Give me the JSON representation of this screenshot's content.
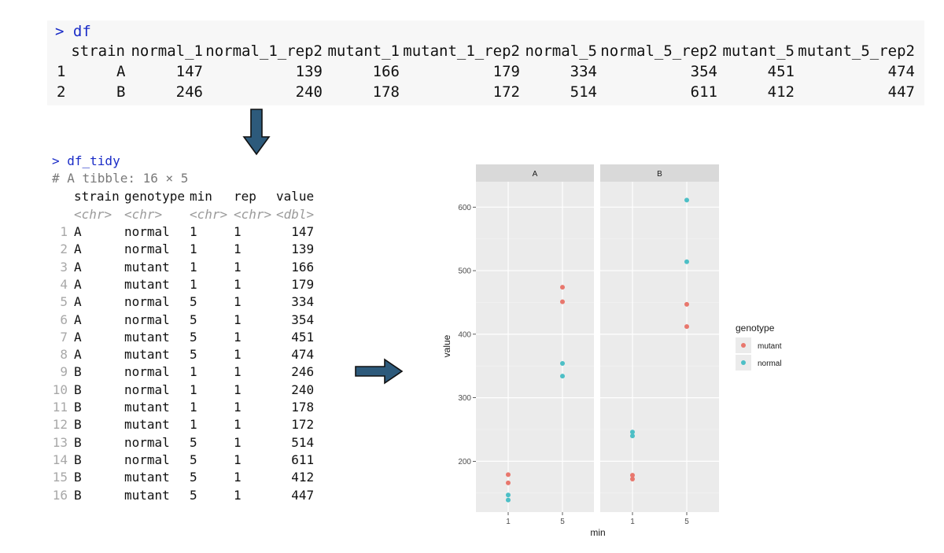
{
  "df": {
    "prompt": "> df",
    "columns": [
      "strain",
      "normal_1",
      "normal_1_rep2",
      "mutant_1",
      "mutant_1_rep2",
      "normal_5",
      "normal_5_rep2",
      "mutant_5",
      "mutant_5_rep2"
    ],
    "rows": [
      [
        "1",
        "A",
        "147",
        "139",
        "166",
        "179",
        "334",
        "354",
        "451",
        "474"
      ],
      [
        "2",
        "B",
        "246",
        "240",
        "178",
        "172",
        "514",
        "611",
        "412",
        "447"
      ]
    ]
  },
  "tidy": {
    "prompt": "> df_tidy",
    "comment": "# A tibble: 16 × 5",
    "columns": [
      "strain",
      "genotype",
      "min",
      "rep",
      "value"
    ],
    "types": [
      "<chr>",
      "<chr>",
      "<chr>",
      "<chr>",
      "<dbl>"
    ],
    "rows": [
      [
        "1",
        "A",
        "normal",
        "1",
        "1",
        "147"
      ],
      [
        "2",
        "A",
        "normal",
        "1",
        "1",
        "139"
      ],
      [
        "3",
        "A",
        "mutant",
        "1",
        "1",
        "166"
      ],
      [
        "4",
        "A",
        "mutant",
        "1",
        "1",
        "179"
      ],
      [
        "5",
        "A",
        "normal",
        "5",
        "1",
        "334"
      ],
      [
        "6",
        "A",
        "normal",
        "5",
        "1",
        "354"
      ],
      [
        "7",
        "A",
        "mutant",
        "5",
        "1",
        "451"
      ],
      [
        "8",
        "A",
        "mutant",
        "5",
        "1",
        "474"
      ],
      [
        "9",
        "B",
        "normal",
        "1",
        "1",
        "246"
      ],
      [
        "10",
        "B",
        "normal",
        "1",
        "1",
        "240"
      ],
      [
        "11",
        "B",
        "mutant",
        "1",
        "1",
        "178"
      ],
      [
        "12",
        "B",
        "mutant",
        "1",
        "1",
        "172"
      ],
      [
        "13",
        "B",
        "normal",
        "5",
        "1",
        "514"
      ],
      [
        "14",
        "B",
        "normal",
        "5",
        "1",
        "611"
      ],
      [
        "15",
        "B",
        "mutant",
        "5",
        "1",
        "412"
      ],
      [
        "16",
        "B",
        "mutant",
        "5",
        "1",
        "447"
      ]
    ]
  },
  "chart_data": {
    "type": "scatter",
    "title": "",
    "xlabel": "min",
    "ylabel": "value",
    "facets": [
      "A",
      "B"
    ],
    "x_categories": [
      "1",
      "5"
    ],
    "yticks": [
      200,
      300,
      400,
      500,
      600
    ],
    "ylim": [
      120,
      640
    ],
    "legend": {
      "title": "genotype",
      "position": "right",
      "entries": [
        "mutant",
        "normal"
      ]
    },
    "colors": {
      "mutant": "#e8776d",
      "normal": "#4dbfc6",
      "panel": "#ebebeb",
      "strip": "#d9d9d9"
    },
    "series": [
      {
        "name": "mutant",
        "points": [
          {
            "facet": "A",
            "x": "1",
            "y": 166
          },
          {
            "facet": "A",
            "x": "1",
            "y": 179
          },
          {
            "facet": "A",
            "x": "5",
            "y": 451
          },
          {
            "facet": "A",
            "x": "5",
            "y": 474
          },
          {
            "facet": "B",
            "x": "1",
            "y": 178
          },
          {
            "facet": "B",
            "x": "1",
            "y": 172
          },
          {
            "facet": "B",
            "x": "5",
            "y": 412
          },
          {
            "facet": "B",
            "x": "5",
            "y": 447
          }
        ]
      },
      {
        "name": "normal",
        "points": [
          {
            "facet": "A",
            "x": "1",
            "y": 147
          },
          {
            "facet": "A",
            "x": "1",
            "y": 139
          },
          {
            "facet": "A",
            "x": "5",
            "y": 334
          },
          {
            "facet": "A",
            "x": "5",
            "y": 354
          },
          {
            "facet": "B",
            "x": "1",
            "y": 246
          },
          {
            "facet": "B",
            "x": "1",
            "y": 240
          },
          {
            "facet": "B",
            "x": "5",
            "y": 514
          },
          {
            "facet": "B",
            "x": "5",
            "y": 611
          }
        ]
      }
    ]
  },
  "arrow_color": "#2d5a7b"
}
